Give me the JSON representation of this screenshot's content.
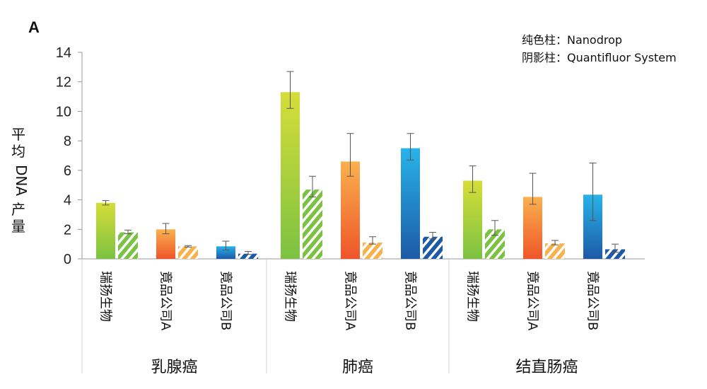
{
  "panel_label": "A",
  "legend": {
    "solid": "纯色柱：Nanodrop",
    "hatched": "阴影柱：Quantifluor System"
  },
  "y_label_parts": [
    "平",
    "均",
    "DNA",
    "产",
    "量"
  ],
  "colors": {
    "green_top": "#d6dd38",
    "green_bottom": "#7cc242",
    "orange_top": "#f9b14e",
    "orange_bottom": "#ef5529",
    "blue_top": "#28b3ea",
    "blue_bottom": "#1d5aa6",
    "axis": "#999999",
    "error_bar": "#555555"
  },
  "chart_data": {
    "type": "bar",
    "ylabel": "平均DNA产量",
    "ylim": [
      0,
      14
    ],
    "yticks": [
      0,
      2,
      4,
      6,
      8,
      10,
      12,
      14
    ],
    "grid": false,
    "legend_placement": "top-right",
    "series_note": "solid bars = Nanodrop, hatched bars = Quantifluor System",
    "groups": [
      {
        "name": "乳腺癌",
        "bars": [
          {
            "label": "瑞扬生物",
            "color": "green",
            "nanodrop": 3.8,
            "nanodrop_err": [
              3.65,
              3.95
            ],
            "quantifluor": 1.8,
            "quantifluor_err": [
              1.7,
              1.95
            ]
          },
          {
            "label": "竟品公司A",
            "color": "orange",
            "nanodrop": 2.0,
            "nanodrop_err": [
              1.7,
              2.4
            ],
            "quantifluor": 0.85,
            "quantifluor_err": [
              0.8,
              0.9
            ]
          },
          {
            "label": "竟品公司B",
            "color": "blue",
            "nanodrop": 0.85,
            "nanodrop_err": [
              0.6,
              1.2
            ],
            "quantifluor": 0.35,
            "quantifluor_err": [
              0.3,
              0.5
            ]
          }
        ]
      },
      {
        "name": "肺癌",
        "bars": [
          {
            "label": "瑞扬生物",
            "color": "green",
            "nanodrop": 11.3,
            "nanodrop_err": [
              10.2,
              12.7
            ],
            "quantifluor": 4.7,
            "quantifluor_err": [
              4.2,
              5.6
            ]
          },
          {
            "label": "竟品公司A",
            "color": "orange",
            "nanodrop": 6.6,
            "nanodrop_err": [
              5.6,
              8.5
            ],
            "quantifluor": 1.1,
            "quantifluor_err": [
              1.0,
              1.5
            ]
          },
          {
            "label": "竟品公司B",
            "color": "blue",
            "nanodrop": 7.5,
            "nanodrop_err": [
              6.7,
              8.5
            ],
            "quantifluor": 1.5,
            "quantifluor_err": [
              1.35,
              1.8
            ]
          }
        ]
      },
      {
        "name": "结直肠癌",
        "bars": [
          {
            "label": "瑞扬生物",
            "color": "green",
            "nanodrop": 5.3,
            "nanodrop_err": [
              4.5,
              6.3
            ],
            "quantifluor": 2.0,
            "quantifluor_err": [
              1.6,
              2.6
            ]
          },
          {
            "label": "竟品公司A",
            "color": "orange",
            "nanodrop": 4.2,
            "nanodrop_err": [
              3.7,
              5.8
            ],
            "quantifluor": 1.05,
            "quantifluor_err": [
              0.95,
              1.25
            ]
          },
          {
            "label": "竟品公司B",
            "color": "blue",
            "nanodrop": 4.35,
            "nanodrop_err": [
              2.6,
              6.5
            ],
            "quantifluor": 0.65,
            "quantifluor_err": [
              0.45,
              1.0
            ]
          }
        ]
      }
    ]
  }
}
